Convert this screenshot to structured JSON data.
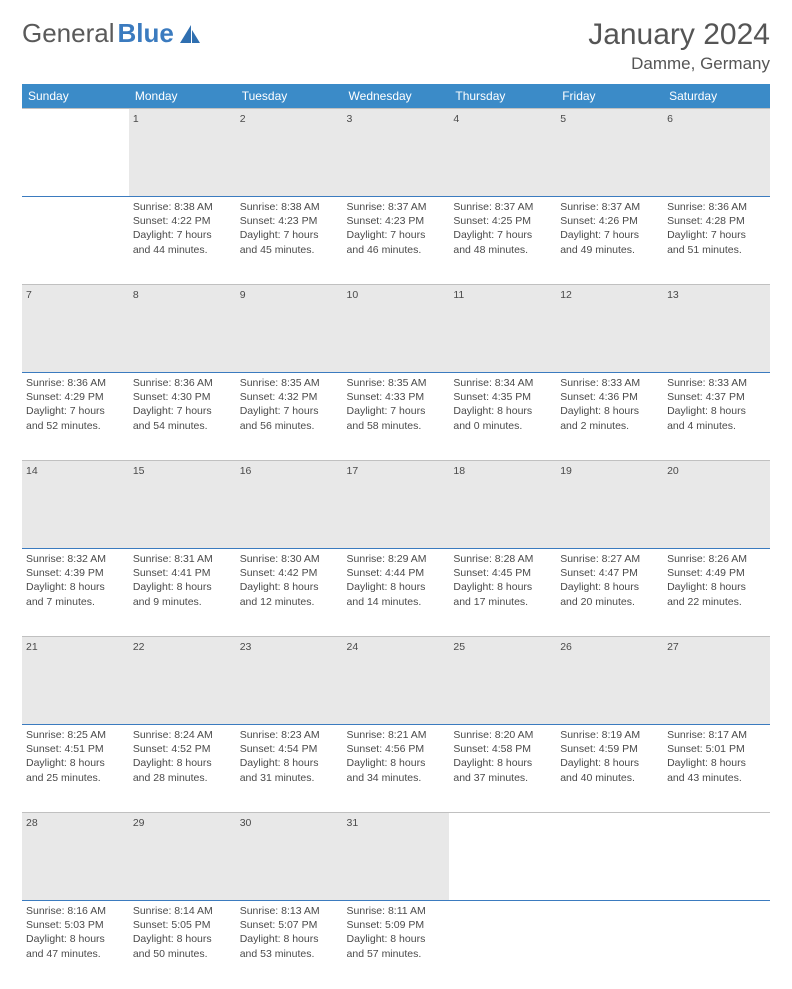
{
  "brand": {
    "part1": "General",
    "part2": "Blue",
    "logo_color": "#2f6fb0"
  },
  "header": {
    "title": "January 2024",
    "location": "Damme, Germany"
  },
  "colors": {
    "header_bg": "#3b8bc8",
    "header_fg": "#ffffff",
    "row_sep": "#3b7bbf",
    "daynum_bg": "#e8e8e8"
  },
  "day_labels": [
    "Sunday",
    "Monday",
    "Tuesday",
    "Wednesday",
    "Thursday",
    "Friday",
    "Saturday"
  ],
  "weeks": [
    {
      "nums": [
        "",
        "1",
        "2",
        "3",
        "4",
        "5",
        "6"
      ],
      "cells": [
        null,
        {
          "sunrise": "8:38 AM",
          "sunset": "4:22 PM",
          "daylight": "7 hours and 44 minutes."
        },
        {
          "sunrise": "8:38 AM",
          "sunset": "4:23 PM",
          "daylight": "7 hours and 45 minutes."
        },
        {
          "sunrise": "8:37 AM",
          "sunset": "4:23 PM",
          "daylight": "7 hours and 46 minutes."
        },
        {
          "sunrise": "8:37 AM",
          "sunset": "4:25 PM",
          "daylight": "7 hours and 48 minutes."
        },
        {
          "sunrise": "8:37 AM",
          "sunset": "4:26 PM",
          "daylight": "7 hours and 49 minutes."
        },
        {
          "sunrise": "8:36 AM",
          "sunset": "4:28 PM",
          "daylight": "7 hours and 51 minutes."
        }
      ]
    },
    {
      "nums": [
        "7",
        "8",
        "9",
        "10",
        "11",
        "12",
        "13"
      ],
      "cells": [
        {
          "sunrise": "8:36 AM",
          "sunset": "4:29 PM",
          "daylight": "7 hours and 52 minutes."
        },
        {
          "sunrise": "8:36 AM",
          "sunset": "4:30 PM",
          "daylight": "7 hours and 54 minutes."
        },
        {
          "sunrise": "8:35 AM",
          "sunset": "4:32 PM",
          "daylight": "7 hours and 56 minutes."
        },
        {
          "sunrise": "8:35 AM",
          "sunset": "4:33 PM",
          "daylight": "7 hours and 58 minutes."
        },
        {
          "sunrise": "8:34 AM",
          "sunset": "4:35 PM",
          "daylight": "8 hours and 0 minutes."
        },
        {
          "sunrise": "8:33 AM",
          "sunset": "4:36 PM",
          "daylight": "8 hours and 2 minutes."
        },
        {
          "sunrise": "8:33 AM",
          "sunset": "4:37 PM",
          "daylight": "8 hours and 4 minutes."
        }
      ]
    },
    {
      "nums": [
        "14",
        "15",
        "16",
        "17",
        "18",
        "19",
        "20"
      ],
      "cells": [
        {
          "sunrise": "8:32 AM",
          "sunset": "4:39 PM",
          "daylight": "8 hours and 7 minutes."
        },
        {
          "sunrise": "8:31 AM",
          "sunset": "4:41 PM",
          "daylight": "8 hours and 9 minutes."
        },
        {
          "sunrise": "8:30 AM",
          "sunset": "4:42 PM",
          "daylight": "8 hours and 12 minutes."
        },
        {
          "sunrise": "8:29 AM",
          "sunset": "4:44 PM",
          "daylight": "8 hours and 14 minutes."
        },
        {
          "sunrise": "8:28 AM",
          "sunset": "4:45 PM",
          "daylight": "8 hours and 17 minutes."
        },
        {
          "sunrise": "8:27 AM",
          "sunset": "4:47 PM",
          "daylight": "8 hours and 20 minutes."
        },
        {
          "sunrise": "8:26 AM",
          "sunset": "4:49 PM",
          "daylight": "8 hours and 22 minutes."
        }
      ]
    },
    {
      "nums": [
        "21",
        "22",
        "23",
        "24",
        "25",
        "26",
        "27"
      ],
      "cells": [
        {
          "sunrise": "8:25 AM",
          "sunset": "4:51 PM",
          "daylight": "8 hours and 25 minutes."
        },
        {
          "sunrise": "8:24 AM",
          "sunset": "4:52 PM",
          "daylight": "8 hours and 28 minutes."
        },
        {
          "sunrise": "8:23 AM",
          "sunset": "4:54 PM",
          "daylight": "8 hours and 31 minutes."
        },
        {
          "sunrise": "8:21 AM",
          "sunset": "4:56 PM",
          "daylight": "8 hours and 34 minutes."
        },
        {
          "sunrise": "8:20 AM",
          "sunset": "4:58 PM",
          "daylight": "8 hours and 37 minutes."
        },
        {
          "sunrise": "8:19 AM",
          "sunset": "4:59 PM",
          "daylight": "8 hours and 40 minutes."
        },
        {
          "sunrise": "8:17 AM",
          "sunset": "5:01 PM",
          "daylight": "8 hours and 43 minutes."
        }
      ]
    },
    {
      "nums": [
        "28",
        "29",
        "30",
        "31",
        "",
        "",
        ""
      ],
      "cells": [
        {
          "sunrise": "8:16 AM",
          "sunset": "5:03 PM",
          "daylight": "8 hours and 47 minutes."
        },
        {
          "sunrise": "8:14 AM",
          "sunset": "5:05 PM",
          "daylight": "8 hours and 50 minutes."
        },
        {
          "sunrise": "8:13 AM",
          "sunset": "5:07 PM",
          "daylight": "8 hours and 53 minutes."
        },
        {
          "sunrise": "8:11 AM",
          "sunset": "5:09 PM",
          "daylight": "8 hours and 57 minutes."
        },
        null,
        null,
        null
      ]
    }
  ],
  "labels": {
    "sunrise": "Sunrise:",
    "sunset": "Sunset:",
    "daylight": "Daylight:"
  }
}
